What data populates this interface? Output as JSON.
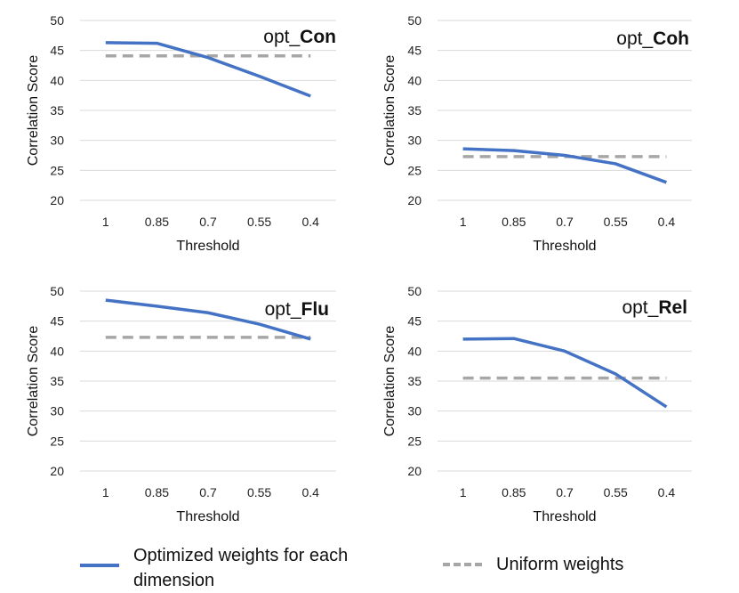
{
  "colors": {
    "optimized": "#4472c4",
    "uniform": "#a6a6a6"
  },
  "legend": {
    "optimized_label": "Optimized weights for each dimension",
    "uniform_label": "Uniform weights"
  },
  "chart_data": [
    {
      "type": "line",
      "title_prefix": "opt_",
      "title_bold": "Con",
      "categories": [
        "1",
        "0.85",
        "0.7",
        "0.55",
        "0.4"
      ],
      "xlabel": "Threshold",
      "ylabel": "Correlation Score",
      "ylim": [
        20,
        50
      ],
      "yticks": [
        20,
        25,
        30,
        35,
        40,
        45,
        50
      ],
      "grid": true,
      "series": [
        {
          "name": "Optimized weights for each dimension",
          "values": [
            46.3,
            46.2,
            43.8,
            40.7,
            37.4
          ]
        },
        {
          "name": "Uniform weights",
          "values": [
            44.1,
            44.1,
            44.1,
            44.1,
            44.1
          ]
        }
      ]
    },
    {
      "type": "line",
      "title_prefix": "opt_",
      "title_bold": "Coh",
      "categories": [
        "1",
        "0.85",
        "0.7",
        "0.55",
        "0.4"
      ],
      "xlabel": "Threshold",
      "ylabel": "Correlation Score",
      "ylim": [
        20,
        50
      ],
      "yticks": [
        20,
        25,
        30,
        35,
        40,
        45,
        50
      ],
      "grid": true,
      "series": [
        {
          "name": "Optimized weights for each dimension",
          "values": [
            28.6,
            28.3,
            27.5,
            26.1,
            23.0
          ]
        },
        {
          "name": "Uniform weights",
          "values": [
            27.3,
            27.3,
            27.3,
            27.3,
            27.3
          ]
        }
      ]
    },
    {
      "type": "line",
      "title_prefix": "opt_",
      "title_bold": "Flu",
      "categories": [
        "1",
        "0.85",
        "0.7",
        "0.55",
        "0.4"
      ],
      "xlabel": "Threshold",
      "ylabel": "Correlation Score",
      "ylim": [
        20,
        50
      ],
      "yticks": [
        20,
        25,
        30,
        35,
        40,
        45,
        50
      ],
      "grid": true,
      "series": [
        {
          "name": "Optimized weights for each dimension",
          "values": [
            48.5,
            47.5,
            46.4,
            44.5,
            42.0
          ]
        },
        {
          "name": "Uniform weights",
          "values": [
            42.3,
            42.3,
            42.3,
            42.3,
            42.3
          ]
        }
      ]
    },
    {
      "type": "line",
      "title_prefix": "opt_",
      "title_bold": "Rel",
      "categories": [
        "1",
        "0.85",
        "0.7",
        "0.55",
        "0.4"
      ],
      "xlabel": "Threshold",
      "ylabel": "Correlation Score",
      "ylim": [
        20,
        50
      ],
      "yticks": [
        20,
        25,
        30,
        35,
        40,
        45,
        50
      ],
      "grid": true,
      "series": [
        {
          "name": "Optimized weights for each dimension",
          "values": [
            42.0,
            42.1,
            40.0,
            36.2,
            30.7
          ]
        },
        {
          "name": "Uniform weights",
          "values": [
            35.5,
            35.5,
            35.5,
            35.5,
            35.5
          ]
        }
      ]
    }
  ]
}
